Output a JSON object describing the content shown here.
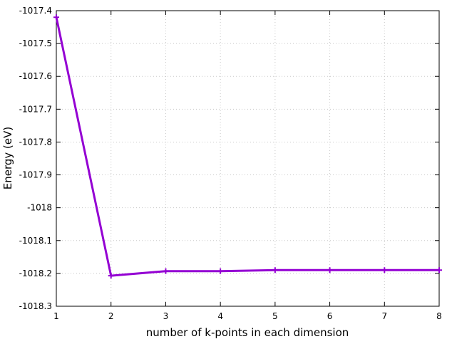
{
  "chart_data": {
    "type": "line",
    "title": "",
    "xlabel": "number of k-points in each dimension",
    "ylabel": "Energy (eV)",
    "xlim": [
      1,
      8
    ],
    "ylim": [
      -1018.3,
      -1017.4
    ],
    "grid": true,
    "legend": "none",
    "x_ticks": [
      "1",
      "2",
      "3",
      "4",
      "5",
      "6",
      "7",
      "8"
    ],
    "y_ticks": [
      "-1017.4",
      "-1017.5",
      "-1017.6",
      "-1017.7",
      "-1017.8",
      "-1017.9",
      "-1018",
      "-1018.1",
      "-1018.2",
      "-1018.3"
    ],
    "series": [
      {
        "color": "#9400d3",
        "marker": "plus",
        "x": [
          1,
          2,
          3,
          4,
          5,
          6,
          7,
          8
        ],
        "y": [
          -1017.42,
          -1018.207,
          -1018.193,
          -1018.193,
          -1018.19,
          -1018.19,
          -1018.19,
          -1018.19
        ]
      }
    ]
  }
}
